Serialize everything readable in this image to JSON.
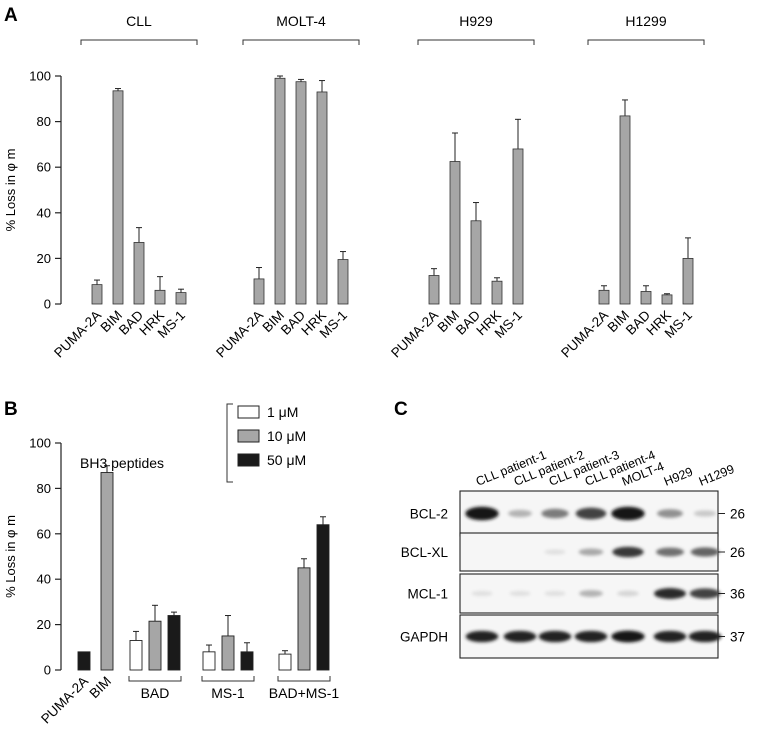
{
  "figure": {
    "panels": [
      {
        "letter": "A"
      },
      {
        "letter": "B"
      },
      {
        "letter": "C"
      }
    ]
  },
  "chart_data": [
    {
      "panel": "A",
      "type": "bar",
      "ylabel": "% Loss in φ m",
      "ylim": [
        0,
        100
      ],
      "yticks": [
        0,
        20,
        40,
        60,
        80,
        100
      ],
      "bar_color": "#a6a6a6",
      "groups": [
        {
          "name": "CLL",
          "categories": [
            "PUMA-2A",
            "BIM",
            "BAD",
            "HRK",
            "MS-1"
          ],
          "values": [
            8.5,
            93.5,
            27,
            6,
            5
          ],
          "errors": [
            2,
            1,
            6.5,
            6,
            1.5
          ]
        },
        {
          "name": "MOLT-4",
          "categories": [
            "PUMA-2A",
            "BIM",
            "BAD",
            "HRK",
            "MS-1"
          ],
          "values": [
            11,
            99,
            97.5,
            93,
            19.5
          ],
          "errors": [
            5,
            1,
            1,
            5,
            3.5
          ]
        },
        {
          "name": "H929",
          "categories": [
            "PUMA-2A",
            "BIM",
            "BAD",
            "HRK",
            "MS-1"
          ],
          "values": [
            12.5,
            62.5,
            36.5,
            10,
            68
          ],
          "errors": [
            3,
            12.5,
            8,
            1.5,
            13
          ]
        },
        {
          "name": "H1299",
          "categories": [
            "PUMA-2A",
            "BIM",
            "BAD",
            "HRK",
            "MS-1"
          ],
          "values": [
            6,
            82.5,
            5.5,
            4,
            20
          ],
          "errors": [
            2,
            7,
            2.5,
            0.5,
            9
          ]
        }
      ]
    },
    {
      "panel": "B",
      "type": "bar",
      "ylabel": "% Loss in φ m",
      "ylim": [
        0,
        100
      ],
      "yticks": [
        0,
        20,
        40,
        60,
        80,
        100
      ],
      "legend_title": "BH3 peptides",
      "legend_placement": "top-right",
      "series": [
        {
          "name": "1 μM",
          "color": "#ffffff"
        },
        {
          "name": "10 μM",
          "color": "#a6a6a6"
        },
        {
          "name": "50 μM",
          "color": "#1a1a1a"
        }
      ],
      "single_bars": [
        {
          "label": "PUMA-2A",
          "value": 8,
          "error": 0,
          "series": 2
        },
        {
          "label": "BIM",
          "value": 87,
          "error": 3,
          "series": 1
        }
      ],
      "grouped_bars": [
        {
          "label": "BAD",
          "values": [
            13,
            21.5,
            24
          ],
          "errors": [
            4,
            7,
            1.5
          ]
        },
        {
          "label": "MS-1",
          "values": [
            8,
            15,
            8
          ],
          "errors": [
            3,
            9,
            4
          ]
        },
        {
          "label": "BAD+MS-1",
          "values": [
            7,
            45,
            64
          ],
          "errors": [
            1.5,
            4,
            3.5
          ]
        }
      ]
    }
  ],
  "western_blot": {
    "panel": "C",
    "lanes": [
      "CLL patient-1",
      "CLL patient-2",
      "CLL patient-3",
      "CLL patient-4",
      "MOLT-4",
      "H929",
      "H1299"
    ],
    "blots": [
      {
        "protein": "BCL-2",
        "mw": "26",
        "intensities": [
          0.95,
          0.25,
          0.5,
          0.75,
          0.95,
          0.4,
          0.15
        ]
      },
      {
        "protein": "BCL-XL",
        "mw": "26",
        "intensities": [
          0.03,
          0.02,
          0.05,
          0.3,
          0.8,
          0.55,
          0.6
        ]
      },
      {
        "protein": "MCL-1",
        "mw": "36",
        "intensities": [
          0.05,
          0.05,
          0.05,
          0.25,
          0.1,
          0.85,
          0.75
        ]
      },
      {
        "protein": "GAPDH",
        "mw": "37",
        "intensities": [
          0.9,
          0.9,
          0.9,
          0.9,
          0.95,
          0.9,
          0.9
        ]
      }
    ]
  }
}
